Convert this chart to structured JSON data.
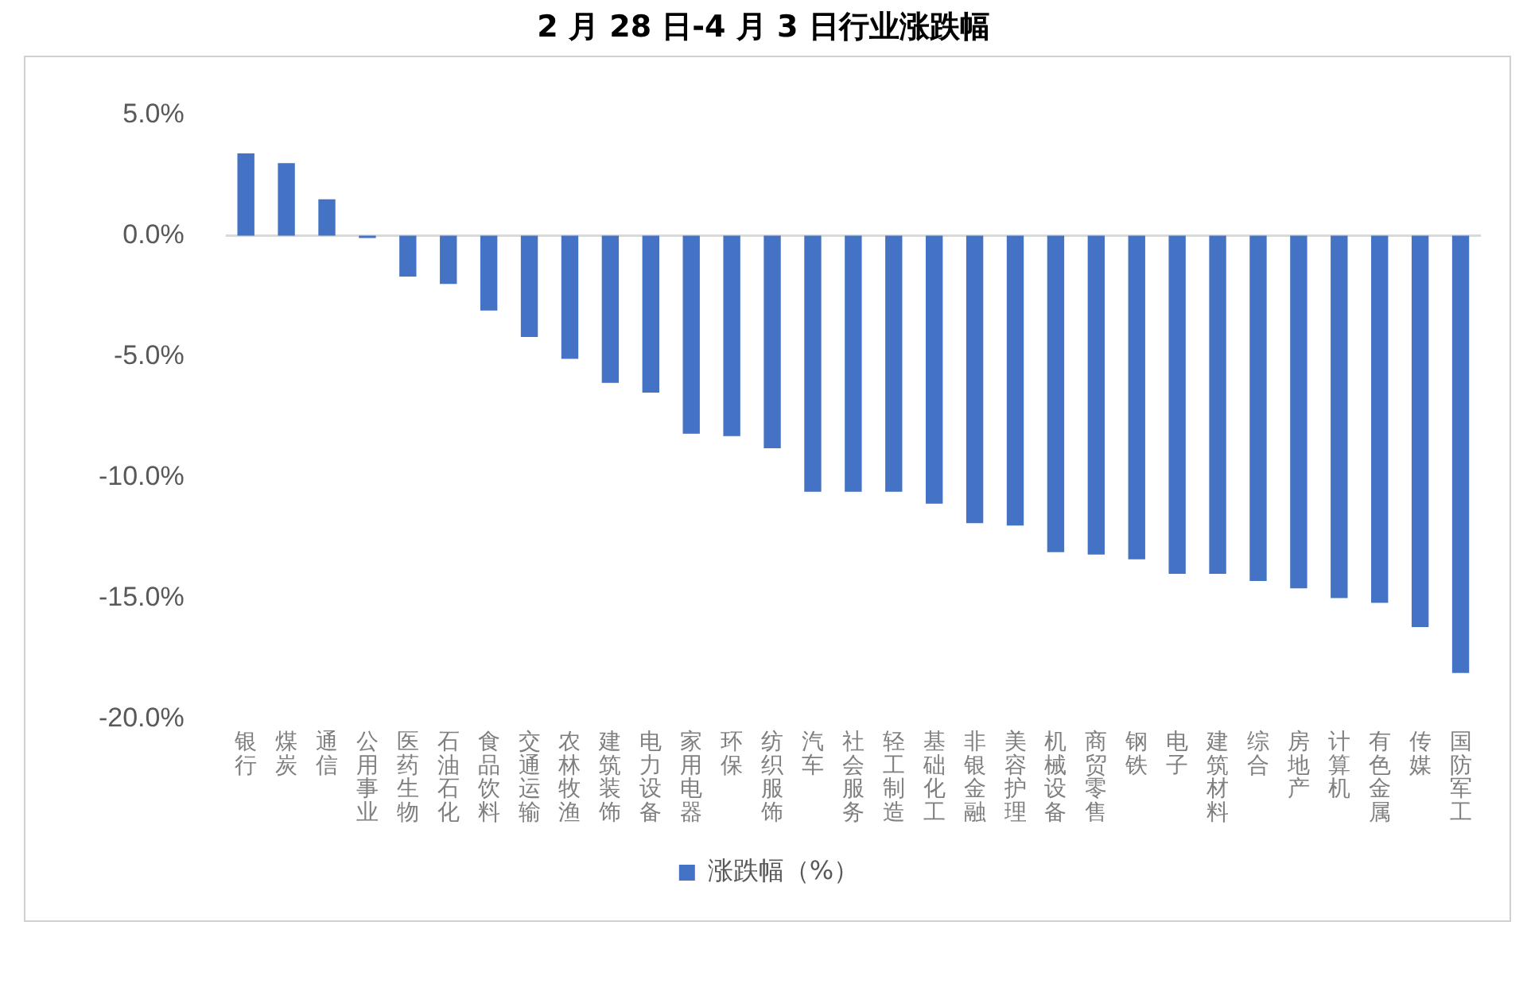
{
  "chart_data": {
    "type": "bar",
    "title": "2 月 28 日-4 月 3 日行业涨跌幅",
    "categories": [
      "银行",
      "煤炭",
      "通信",
      "公用事业",
      "医药生物",
      "石油石化",
      "食品饮料",
      "交通运输",
      "农林牧渔",
      "建筑装饰",
      "电力设备",
      "家用电器",
      "环保",
      "纺织服饰",
      "汽车",
      "社会服务",
      "轻工制造",
      "基础化工",
      "非银金融",
      "美容护理",
      "机械设备",
      "商贸零售",
      "钢铁",
      "电子",
      "建筑材料",
      "综合",
      "房地产",
      "计算机",
      "有色金属",
      "传媒",
      "国防军工"
    ],
    "series": [
      {
        "name": "涨跌幅（%）",
        "color": "#4472c4",
        "values": [
          3.4,
          3.0,
          1.5,
          -0.1,
          -1.7,
          -2.0,
          -3.1,
          -4.2,
          -5.1,
          -6.1,
          -6.5,
          -8.2,
          -8.3,
          -8.8,
          -10.6,
          -10.6,
          -10.6,
          -11.1,
          -11.9,
          -12.0,
          -13.1,
          -13.2,
          -13.4,
          -14.0,
          -14.0,
          -14.3,
          -14.6,
          -15.0,
          -15.2,
          -16.2,
          -18.1
        ]
      }
    ],
    "ylim": [
      -20,
      5
    ],
    "yticks": [
      {
        "value": 5,
        "label": "5.0%"
      },
      {
        "value": 0,
        "label": "0.0%"
      },
      {
        "value": -5,
        "label": "-5.0%"
      },
      {
        "value": -10,
        "label": "-10.0%"
      },
      {
        "value": -15,
        "label": "-15.0%"
      },
      {
        "value": -20,
        "label": "-20.0%"
      }
    ],
    "ref_lines": [
      {
        "axis": "y",
        "value": 0,
        "color": "#d9d9d9"
      }
    ],
    "grid": false,
    "legend": "bottom"
  }
}
